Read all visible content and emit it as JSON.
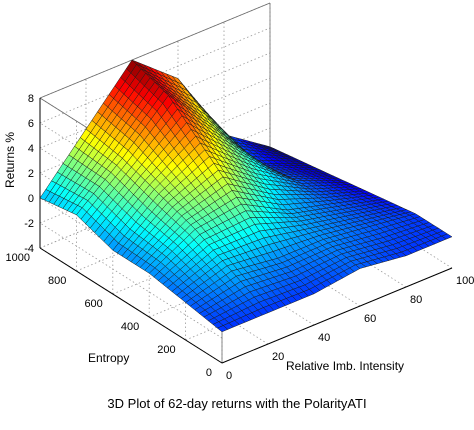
{
  "chart_data": {
    "type": "surface3d",
    "caption": "3D Plot of 62-day returns with the PolarityATI",
    "xlabel": "Relative Imb. Intensity",
    "ylabel": "Entropy",
    "zlabel": "Returns %",
    "xlim": [
      0,
      100
    ],
    "ylim": [
      0,
      1000
    ],
    "zlim": [
      -4,
      8
    ],
    "x_ticks": [
      0,
      20,
      40,
      60,
      80,
      100
    ],
    "y_ticks": [
      0,
      200,
      400,
      600,
      800,
      1000
    ],
    "z_ticks": [
      -4,
      -2,
      0,
      2,
      4,
      6,
      8
    ],
    "grid": true,
    "colormap": "jet",
    "x_values": [
      0,
      20,
      40,
      60,
      80,
      100
    ],
    "y_values": [
      0,
      200,
      400,
      600,
      800,
      1000
    ],
    "z_values": [
      [
        -1.5,
        -1.5,
        -1.5,
        -1.0,
        -1.5,
        -1.5
      ],
      [
        -1.0,
        0.0,
        -0.5,
        -0.5,
        -1.0,
        -1.5
      ],
      [
        -0.5,
        1.5,
        2.0,
        0.0,
        -1.0,
        -2.0
      ],
      [
        -0.5,
        2.5,
        4.5,
        1.5,
        -1.0,
        -2.5
      ],
      [
        0.5,
        3.5,
        7.0,
        3.0,
        -1.5,
        -3.0
      ],
      [
        0.0,
        4.0,
        8.0,
        5.0,
        -1.0,
        -3.5
      ]
    ]
  }
}
